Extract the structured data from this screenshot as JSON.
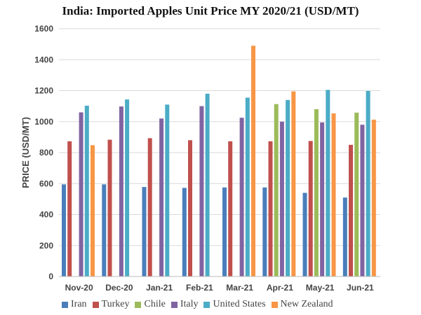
{
  "chart_data": {
    "type": "bar",
    "title": "India: Imported Apples Unit Price MY 2020/21 (USD/MT)",
    "xlabel": "",
    "ylabel": "PRICE (USD/MT)",
    "ylim": [
      0,
      1600
    ],
    "yticks": [
      0,
      200,
      400,
      600,
      800,
      1000,
      1200,
      1400,
      1600
    ],
    "grid": true,
    "legend_position": "bottom",
    "categories": [
      "Nov-20",
      "Dec-20",
      "Jan-21",
      "Feb-21",
      "Mar-21",
      "Apr-21",
      "May-21",
      "Jun-21"
    ],
    "series": [
      {
        "name": "Iran",
        "color": "#4a7ebb",
        "values": [
          595,
          595,
          578,
          572,
          575,
          575,
          540,
          510
        ]
      },
      {
        "name": "Turkey",
        "color": "#c0504d",
        "values": [
          873,
          883,
          893,
          880,
          873,
          873,
          875,
          850
        ]
      },
      {
        "name": "Chile",
        "color": "#9bbb59",
        "values": [
          null,
          null,
          null,
          null,
          null,
          1113,
          1080,
          1058
        ]
      },
      {
        "name": "Italy",
        "color": "#8064a2",
        "values": [
          1060,
          1098,
          1020,
          1100,
          1025,
          1000,
          995,
          980
        ]
      },
      {
        "name": "United States",
        "color": "#4bacc6",
        "values": [
          1103,
          1143,
          1110,
          1180,
          1155,
          1140,
          1205,
          1198
        ]
      },
      {
        "name": "New Zealand",
        "color": "#f79646",
        "values": [
          848,
          null,
          null,
          null,
          1490,
          1195,
          1053,
          1013
        ]
      }
    ]
  }
}
